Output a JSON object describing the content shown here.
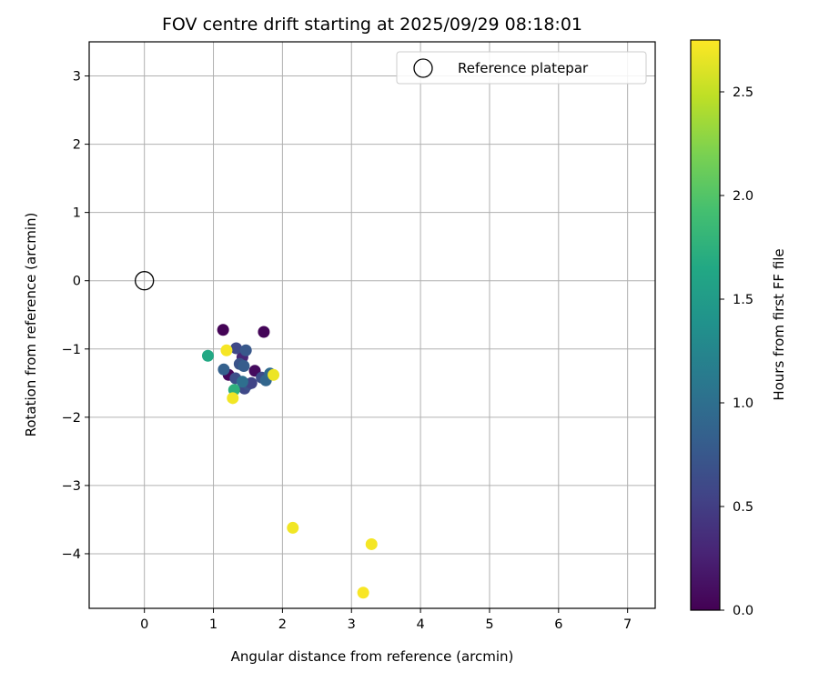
{
  "chart_data": {
    "type": "scatter",
    "title": "FOV centre drift starting at 2025/09/29 08:18:01",
    "xlabel": "Angular distance from reference (arcmin)",
    "ylabel": "Rotation from reference (arcmin)",
    "xlim": [
      -0.8,
      7.4
    ],
    "ylim": [
      -4.8,
      3.5
    ],
    "xticks": [
      0,
      1,
      2,
      3,
      4,
      5,
      6,
      7
    ],
    "yticks": [
      -4,
      -3,
      -2,
      -1,
      0,
      1,
      2,
      3
    ],
    "grid": true,
    "legend": {
      "position": "top-right",
      "entries": [
        "Reference platepar"
      ]
    },
    "reference_point": {
      "x": 0,
      "y": 0,
      "label": "Reference platepar"
    },
    "colorbar": {
      "label": "Hours from first FF file",
      "colormap": "viridis",
      "range": [
        0.0,
        2.75
      ],
      "ticks": [
        "0.0",
        "0.5",
        "1.0",
        "1.5",
        "2.0",
        "2.5"
      ]
    },
    "points": [
      {
        "x": 1.14,
        "y": -0.72,
        "hours": 0.02
      },
      {
        "x": 1.73,
        "y": -0.75,
        "hours": 0.03
      },
      {
        "x": 1.22,
        "y": -1.38,
        "hours": 0.05
      },
      {
        "x": 1.6,
        "y": -1.32,
        "hours": 0.08
      },
      {
        "x": 1.42,
        "y": -1.12,
        "hours": 0.3
      },
      {
        "x": 1.33,
        "y": -0.99,
        "hours": 0.6
      },
      {
        "x": 1.47,
        "y": -1.02,
        "hours": 0.75
      },
      {
        "x": 1.38,
        "y": -1.22,
        "hours": 0.7
      },
      {
        "x": 1.44,
        "y": -1.25,
        "hours": 0.8
      },
      {
        "x": 1.15,
        "y": -1.3,
        "hours": 0.85
      },
      {
        "x": 1.32,
        "y": -1.43,
        "hours": 0.65
      },
      {
        "x": 1.45,
        "y": -1.58,
        "hours": 0.6
      },
      {
        "x": 1.5,
        "y": -1.52,
        "hours": 0.7
      },
      {
        "x": 1.55,
        "y": -1.5,
        "hours": 0.55
      },
      {
        "x": 1.7,
        "y": -1.42,
        "hours": 0.65
      },
      {
        "x": 1.76,
        "y": -1.46,
        "hours": 0.9
      },
      {
        "x": 1.82,
        "y": -1.36,
        "hours": 0.95
      },
      {
        "x": 1.42,
        "y": -1.48,
        "hours": 1.0
      },
      {
        "x": 1.3,
        "y": -1.6,
        "hours": 1.75
      },
      {
        "x": 0.92,
        "y": -1.1,
        "hours": 1.65
      },
      {
        "x": 1.28,
        "y": -1.72,
        "hours": 2.7
      },
      {
        "x": 1.19,
        "y": -1.02,
        "hours": 2.72
      },
      {
        "x": 1.87,
        "y": -1.38,
        "hours": 2.68
      },
      {
        "x": 2.15,
        "y": -3.62,
        "hours": 2.7
      },
      {
        "x": 3.29,
        "y": -3.86,
        "hours": 2.71
      },
      {
        "x": 3.17,
        "y": -4.57,
        "hours": 2.73
      }
    ]
  }
}
